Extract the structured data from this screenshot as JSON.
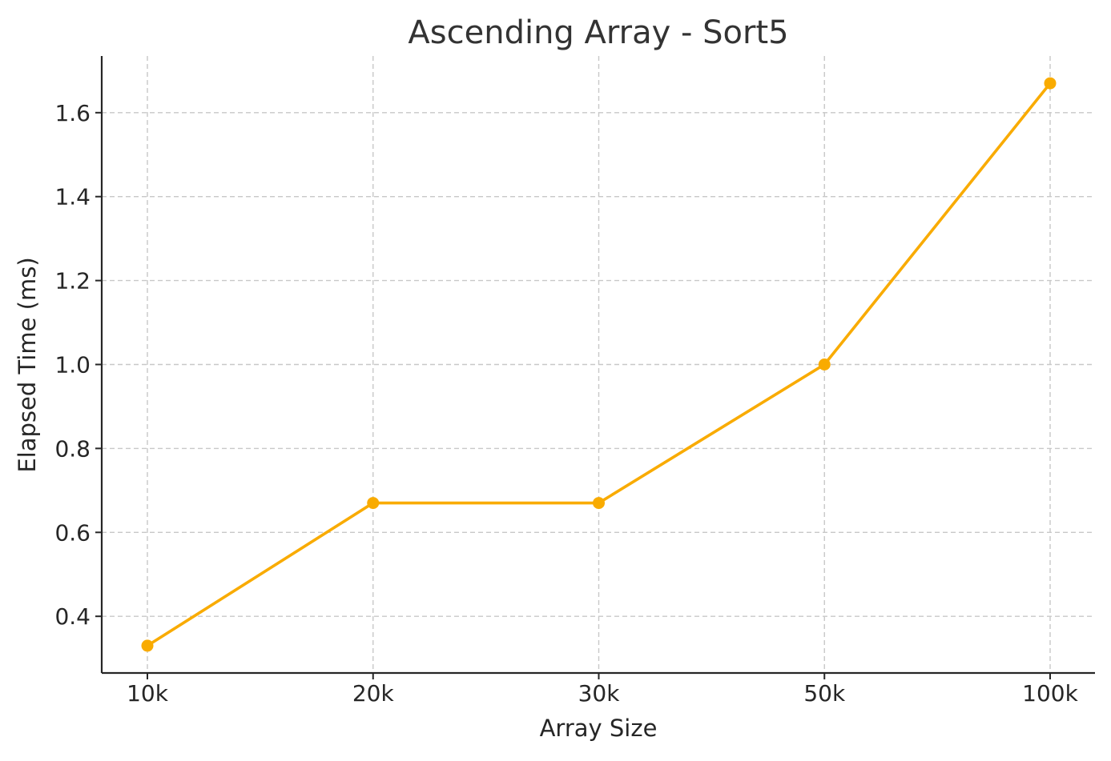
{
  "chart_data": {
    "type": "line",
    "title": "Ascending Array - Sort5",
    "xlabel": "Array Size",
    "ylabel": "Elapsed Time (ms)",
    "categories": [
      "10k",
      "20k",
      "30k",
      "50k",
      "100k"
    ],
    "series": [
      {
        "values": [
          0.33,
          0.67,
          0.67,
          1.0,
          1.67
        ],
        "color": "#f9ab00",
        "marker": "circle"
      }
    ],
    "yticks": [
      0.4,
      0.6,
      0.8,
      1.0,
      1.2,
      1.4,
      1.6
    ],
    "ytick_labels": [
      "0.4",
      "0.6",
      "0.8",
      "1.0",
      "1.2",
      "1.4",
      "1.6"
    ],
    "ylim": [
      0.265,
      1.735
    ],
    "grid": true,
    "grid_style": "dashed",
    "legend": "none"
  }
}
